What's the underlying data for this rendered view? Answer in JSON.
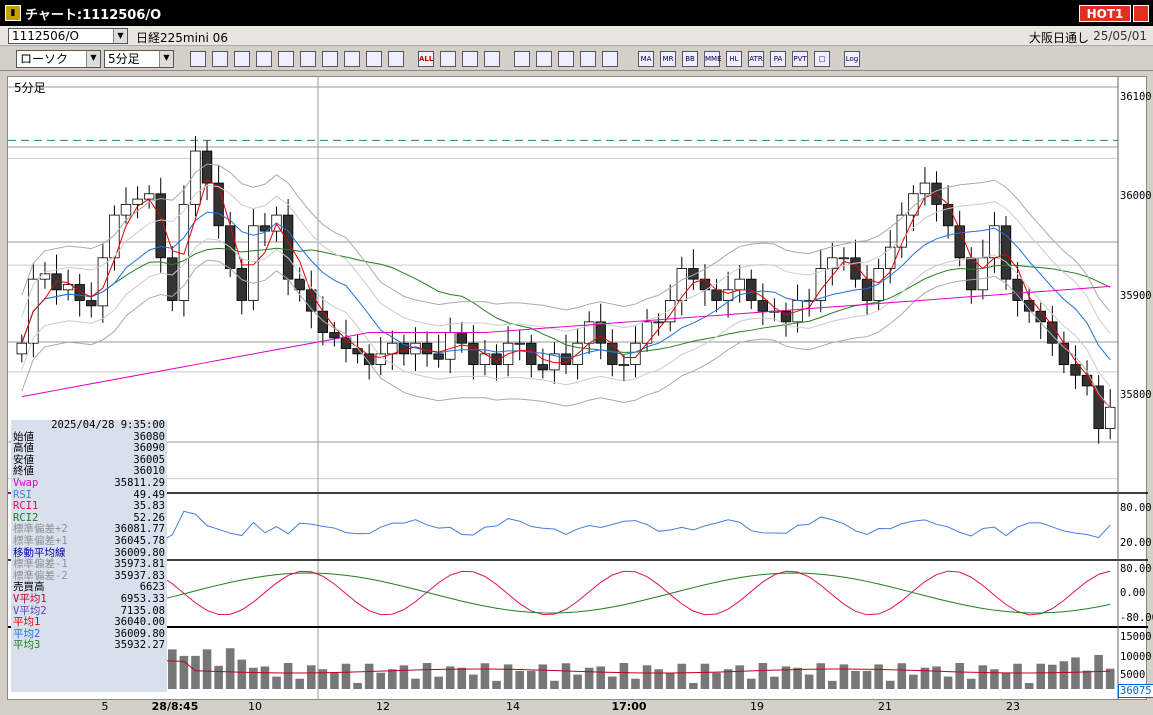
{
  "window": {
    "title": "チャート:1112506/O",
    "app_icon": "chart-app-icon",
    "hot_label": "HOT1"
  },
  "header": {
    "symbol_code": "1112506/O",
    "symbol_name": "日経225mini 06",
    "market": "大阪日通し",
    "date": "25/05/01"
  },
  "toolbar": {
    "chart_type": "ローソク",
    "interval": "5分足",
    "indicator_buttons": [
      "MA",
      "MR",
      "BB",
      "MME",
      "HL",
      "ATR",
      "PA",
      "PVT",
      "□",
      "Log"
    ],
    "all_label": "ALL"
  },
  "chart": {
    "period_label": "5分足",
    "y_ticks": [
      "36100",
      "36000",
      "35900",
      "35800"
    ],
    "rsi_ticks": [
      "80.00",
      "20.00"
    ],
    "rci_ticks": [
      "80.00",
      "0.00",
      "-80.00"
    ],
    "vol_ticks": [
      "15000",
      "10000",
      "5000"
    ],
    "last_price_box": "36075",
    "x_ticks": [
      "5",
      "28/8:45",
      "10",
      "12",
      "14",
      "17:00",
      "19",
      "21",
      "23"
    ]
  },
  "info": {
    "datetime": "2025/04/28 9:35:00",
    "rows": [
      {
        "label": "始値",
        "value": "36080",
        "color": "#000"
      },
      {
        "label": "高値",
        "value": "36090",
        "color": "#000"
      },
      {
        "label": "安値",
        "value": "36005",
        "color": "#000"
      },
      {
        "label": "終値",
        "value": "36010",
        "color": "#000"
      },
      {
        "label": "Vwap",
        "value": "35811.29",
        "color": "#e000c0"
      },
      {
        "label": "RSI",
        "value": "49.49",
        "color": "#4080e0"
      },
      {
        "label": "RCI1",
        "value": "35.83",
        "color": "#e01040"
      },
      {
        "label": "RCI2",
        "value": "52.26",
        "color": "#208020"
      },
      {
        "label": "標準偏差+2",
        "value": "36081.77",
        "color": "#909090"
      },
      {
        "label": "標準偏差+1",
        "value": "36045.78",
        "color": "#909090"
      },
      {
        "label": "移動平均線",
        "value": "36009.80",
        "color": "#0000a0"
      },
      {
        "label": "標準偏差-1",
        "value": "35973.81",
        "color": "#909090"
      },
      {
        "label": "標準偏差-2",
        "value": "35937.83",
        "color": "#909090"
      },
      {
        "label": "売買高",
        "value": "6623",
        "color": "#000"
      },
      {
        "label": "V平均1",
        "value": "6953.33",
        "color": "#c00020"
      },
      {
        "label": "V平均2",
        "value": "7135.08",
        "color": "#6040c0"
      },
      {
        "label": "平均1",
        "value": "36040.00",
        "color": "#e00000"
      },
      {
        "label": "平均2",
        "value": "36009.80",
        "color": "#2070e0"
      },
      {
        "label": "平均3",
        "value": "35932.27",
        "color": "#208020"
      }
    ]
  },
  "chart_data": {
    "type": "candlestick",
    "price_range": [
      35750,
      36120
    ],
    "dashed_level": 36070,
    "closes": [
      35880,
      35940,
      35945,
      35930,
      35935,
      35920,
      35915,
      35960,
      36000,
      36010,
      36015,
      36020,
      35960,
      35920,
      36010,
      36060,
      36030,
      35990,
      35950,
      35920,
      35990,
      35985,
      36000,
      35940,
      35930,
      35910,
      35890,
      35885,
      35875,
      35870,
      35860,
      35870,
      35880,
      35870,
      35880,
      35870,
      35865,
      35890,
      35880,
      35860,
      35870,
      35860,
      35880,
      35880,
      35860,
      35855,
      35870,
      35860,
      35880,
      35900,
      35880,
      35860,
      35860,
      35880,
      35900,
      35900,
      35920,
      35950,
      35940,
      35930,
      35920,
      35930,
      35940,
      35920,
      35910,
      35910,
      35900,
      35920,
      35920,
      35950,
      35960,
      35960,
      35940,
      35920,
      35950,
      35970,
      36000,
      36020,
      36030,
      36010,
      35990,
      35960,
      35930,
      35960,
      35990,
      35940,
      35920,
      35910,
      35900,
      35880,
      35860,
      35850,
      35840,
      35800,
      35820
    ]
  }
}
